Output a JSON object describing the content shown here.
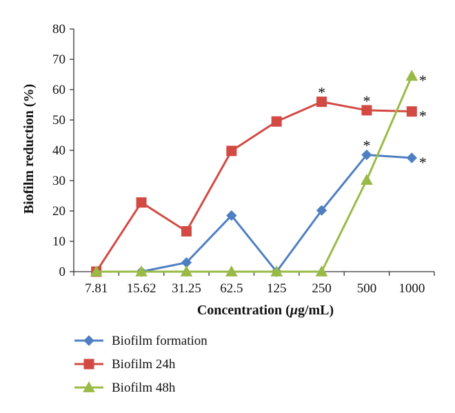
{
  "chart_data": {
    "type": "line",
    "xlabel_prefix": "Concentration (",
    "xlabel_mu": "μ",
    "xlabel_suffix": "g/mL)",
    "ylabel": "Biofilm reduction (%)",
    "categories": [
      "7.81",
      "15.62",
      "31.25",
      "62.5",
      "125",
      "250",
      "500",
      "1000"
    ],
    "ylim": [
      0,
      80
    ],
    "yticks": [
      "0",
      "10",
      "20",
      "30",
      "40",
      "50",
      "60",
      "70",
      "80"
    ],
    "grid": false,
    "legend_position": "bottom-left",
    "series": [
      {
        "name": "Biofilm formation",
        "color": "#4f7fc2",
        "marker": "diamond",
        "values": [
          0,
          0,
          3,
          18.5,
          0,
          20.2,
          38.5,
          37.5
        ],
        "significance": [
          "",
          "",
          "",
          "",
          "",
          "",
          "*",
          "*"
        ]
      },
      {
        "name": "Biofilm 24h",
        "color": "#d24a43",
        "marker": "square",
        "values": [
          0,
          22.8,
          13.3,
          39.8,
          49.5,
          56,
          53.2,
          52.8
        ],
        "significance": [
          "",
          "",
          "",
          "",
          "",
          "*",
          "*",
          "*"
        ]
      },
      {
        "name": "Biofilm 48h",
        "color": "#99ba46",
        "marker": "triangle",
        "values": [
          0,
          0,
          0,
          0,
          0,
          0,
          30.2,
          64.5
        ],
        "significance": [
          "",
          "",
          "",
          "",
          "",
          "",
          "",
          "*"
        ]
      }
    ]
  }
}
